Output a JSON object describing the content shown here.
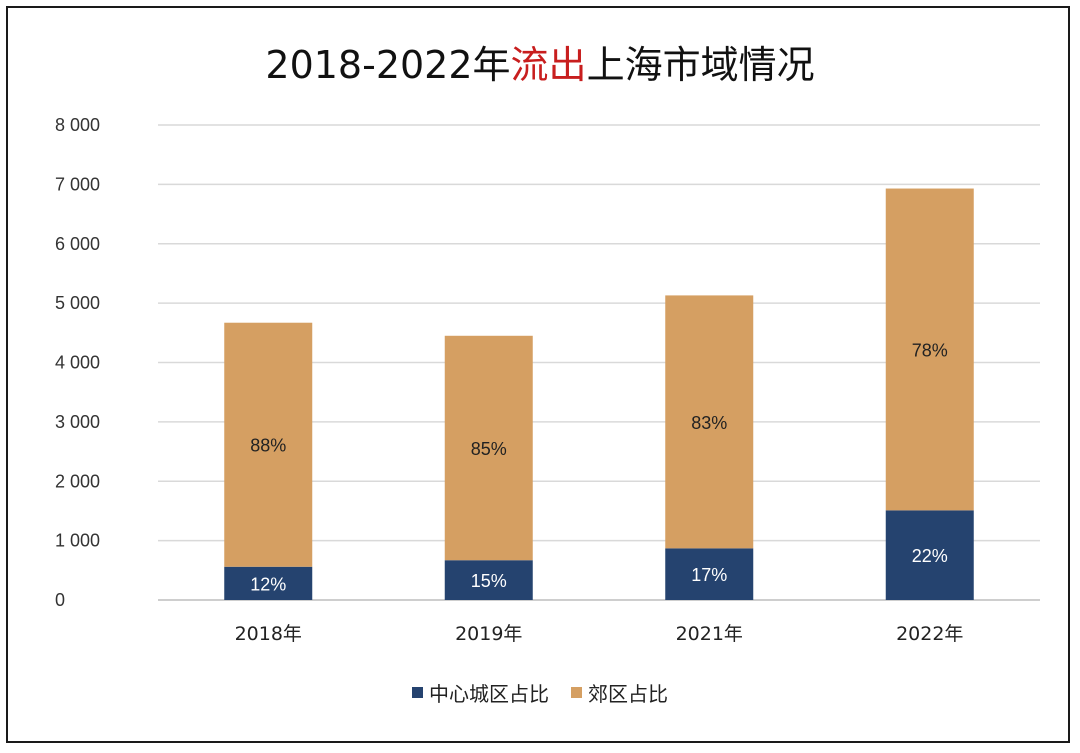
{
  "title": {
    "part1": "2018-2022年",
    "highlight": "流出",
    "part2": "上海市域情况",
    "highlight_color": "#c81e1e"
  },
  "chart_data": {
    "type": "bar",
    "stacked": true,
    "categories": [
      "2018年",
      "2019年",
      "2021年",
      "2022年"
    ],
    "ylim": [
      0,
      8000
    ],
    "yticks": [
      0,
      1000,
      2000,
      3000,
      4000,
      5000,
      6000,
      7000,
      8000
    ],
    "ytick_labels": [
      "0",
      "1 000",
      "2 000",
      "3 000",
      "4 000",
      "5 000",
      "6 000",
      "7 000",
      "8 000"
    ],
    "grid": true,
    "legend_position": "bottom",
    "series": [
      {
        "name": "中心城区占比",
        "color": "#25436f",
        "label_color": "#ffffff",
        "values": [
          560,
          670,
          870,
          1510
        ],
        "labels": [
          "12%",
          "15%",
          "17%",
          "22%"
        ]
      },
      {
        "name": "郊区占比",
        "color": "#d59f62",
        "label_color": "#222222",
        "values": [
          4110,
          3780,
          4260,
          5420
        ],
        "labels": [
          "88%",
          "85%",
          "83%",
          "78%"
        ]
      }
    ]
  }
}
